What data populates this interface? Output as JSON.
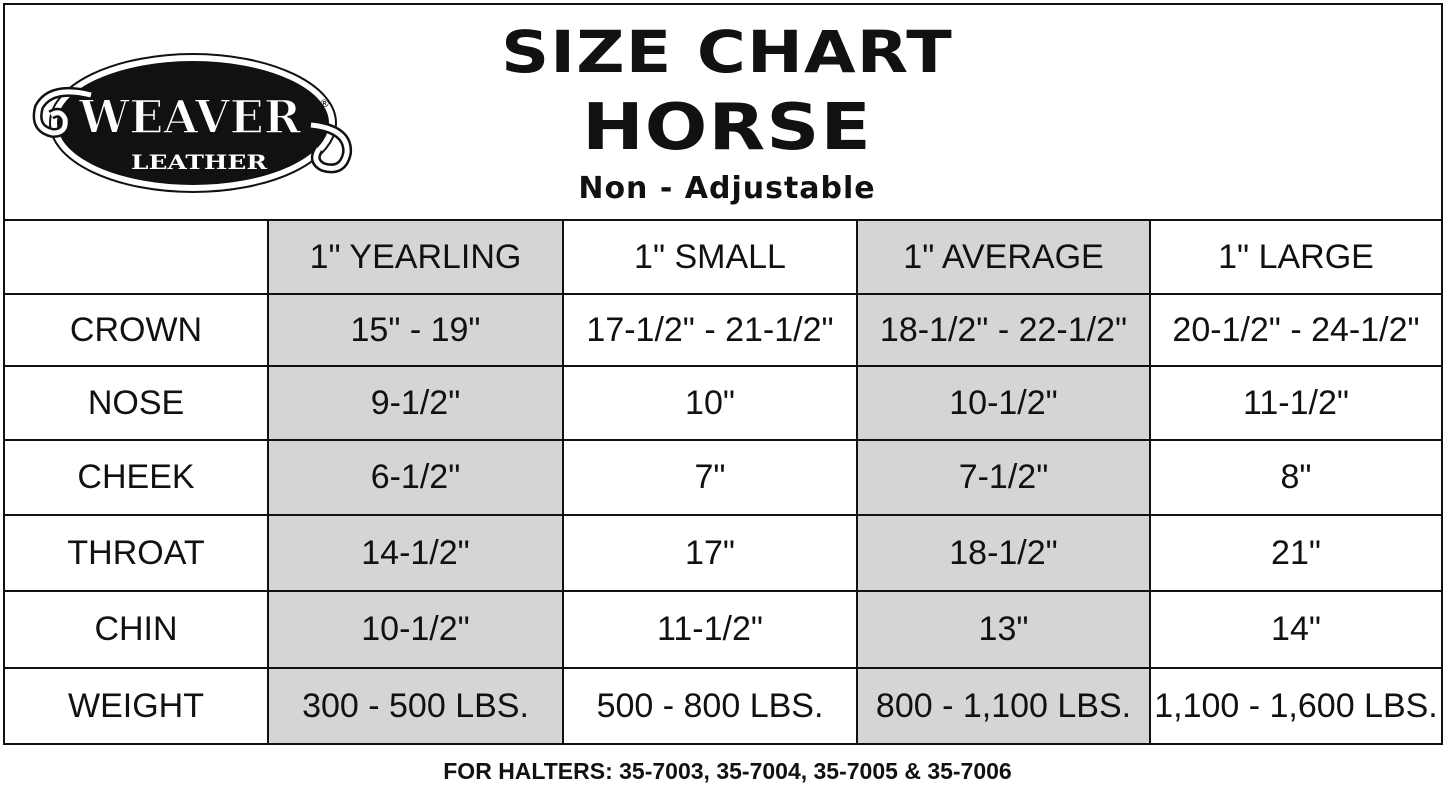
{
  "logo": {
    "brand": "WEAVER",
    "sub": "LEATHER",
    "mark": "®"
  },
  "header": {
    "title": "SIZE CHART",
    "subtitle": "HORSE",
    "variant": "Non - Adjustable"
  },
  "table": {
    "columns": [
      "",
      "1\" YEARLING",
      "1\" SMALL",
      "1\" AVERAGE",
      "1\" LARGE"
    ],
    "rows": [
      {
        "label": "CROWN",
        "values": [
          "15\" - 19\"",
          "17-1/2\" - 21-1/2\"",
          "18-1/2\" - 22-1/2\"",
          "20-1/2\" - 24-1/2\""
        ]
      },
      {
        "label": "NOSE",
        "values": [
          "9-1/2\"",
          "10\"",
          "10-1/2\"",
          "11-1/2\""
        ]
      },
      {
        "label": "CHEEK",
        "values": [
          "6-1/2\"",
          "7\"",
          "7-1/2\"",
          "8\""
        ]
      },
      {
        "label": "THROAT",
        "values": [
          "14-1/2\"",
          "17\"",
          "18-1/2\"",
          "21\""
        ]
      },
      {
        "label": "CHIN",
        "values": [
          "10-1/2\"",
          "11-1/2\"",
          "13\"",
          "14\""
        ]
      },
      {
        "label": "WEIGHT",
        "values": [
          "300 - 500 LBS.",
          "500 - 800 LBS.",
          "800 - 1,100 LBS.",
          "1,100 - 1,600 LBS."
        ]
      }
    ],
    "shade_color": "#d5d5d5"
  },
  "footer": "FOR HALTERS: 35-7003, 35-7004, 35-7005 & 35-7006"
}
